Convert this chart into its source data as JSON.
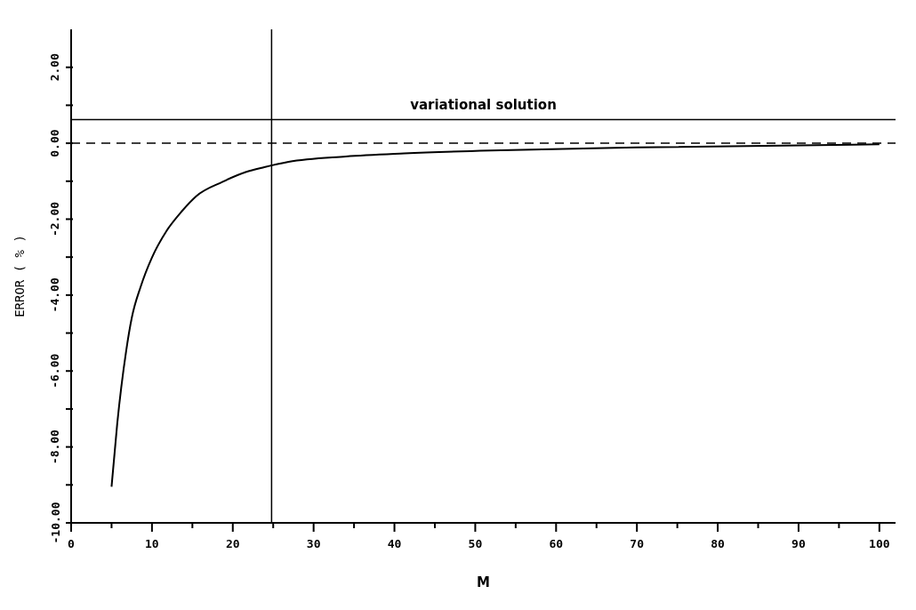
{
  "chart_data": {
    "type": "line",
    "xlabel": "M",
    "ylabel": "ERROR ( % )",
    "xlim": [
      0,
      102
    ],
    "ylim": [
      -10,
      3
    ],
    "xticks": [
      0,
      {
        "value": 5,
        "label": null
      },
      10,
      {
        "value": 15,
        "label": null
      },
      20,
      {
        "value": 25,
        "label": null
      },
      30,
      {
        "value": 35,
        "label": null
      },
      40,
      {
        "value": 45,
        "label": null
      },
      50,
      {
        "value": 55,
        "label": null
      },
      60,
      {
        "value": 65,
        "label": null
      },
      70,
      {
        "value": 75,
        "label": null
      },
      80,
      {
        "value": 85,
        "label": null
      },
      90,
      {
        "value": 95,
        "label": null
      },
      100
    ],
    "yticks": [
      {
        "value": -10,
        "label": "-10.00"
      },
      {
        "value": -9,
        "label": null
      },
      {
        "value": -8,
        "label": "-8.00"
      },
      {
        "value": -7,
        "label": null
      },
      {
        "value": -6,
        "label": "-6.00"
      },
      {
        "value": -5,
        "label": null
      },
      {
        "value": -4,
        "label": "-4.00"
      },
      {
        "value": -3,
        "label": null
      },
      {
        "value": -2,
        "label": "-2.00"
      },
      {
        "value": -1,
        "label": null
      },
      {
        "value": 0,
        "label": "0.00"
      },
      {
        "value": 1,
        "label": null
      },
      {
        "value": 2,
        "label": "2.00"
      }
    ],
    "series": [
      {
        "color": "#000000",
        "x": [
          5,
          5.7,
          6.8,
          7.5,
          8.6,
          10,
          11.8,
          13.7,
          15.5,
          18.7,
          21.6,
          23.9,
          26.9,
          34,
          41.2,
          51.9,
          70,
          100
        ],
        "values": [
          -9.05,
          -7.39,
          -5.48,
          -4.6,
          -3.78,
          -3.01,
          -2.31,
          -1.79,
          -1.39,
          -1.02,
          -0.76,
          -0.63,
          -0.49,
          -0.35,
          -0.27,
          -0.19,
          -0.11,
          -0.03
        ]
      }
    ],
    "ref_lines": [
      {
        "axis": "y",
        "value": 0.62,
        "label": "variational solution",
        "color": "#000000",
        "line_style": "solid"
      },
      {
        "axis": "y",
        "value": 0,
        "label": null,
        "color": "#000000",
        "line_style": "dashed"
      },
      {
        "axis": "x",
        "value": 24.8,
        "label": null,
        "color": "#000000",
        "line_style": "solid"
      }
    ],
    "grid": false,
    "legend": false,
    "marker": "none",
    "line_style": "solid"
  }
}
